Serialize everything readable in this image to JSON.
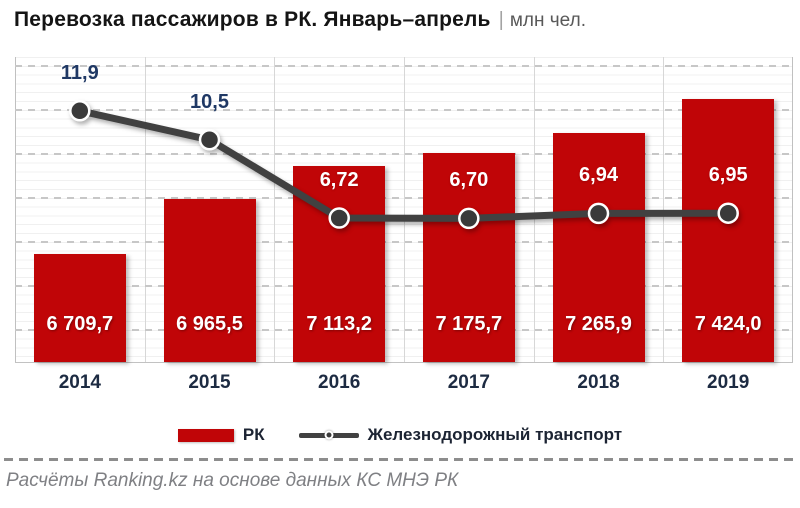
{
  "header": {
    "separator": "|"
  },
  "chart_data": {
    "type": "combo",
    "title": "Перевозка пассажиров в РК. Январь–апрель",
    "unit": "млн чел.",
    "xlabel": "",
    "ylabel": "",
    "categories": [
      "2014",
      "2015",
      "2016",
      "2017",
      "2018",
      "2019"
    ],
    "series": [
      {
        "name": "РК",
        "kind": "bar",
        "color": "#c00507",
        "values": [
          6709.7,
          6965.5,
          7113.2,
          7175.7,
          7265.9,
          7424.0
        ],
        "labels": [
          "6 709,7",
          "6 965,5",
          "7 113,2",
          "7 175,7",
          "7 265,9",
          "7 424,0"
        ],
        "label_color": "#ffffff"
      },
      {
        "name": "Железнодорожный транспорт",
        "kind": "line",
        "color": "#414141",
        "marker_fill": "#3a3a3a",
        "marker_ring": "#ffffff",
        "values": [
          11.9,
          10.5,
          6.72,
          6.7,
          6.94,
          6.95
        ],
        "labels": [
          "11,9",
          "10,5",
          "6,72",
          "6,70",
          "6,94",
          "6,95"
        ],
        "label_color_outside": "#1F3864",
        "label_color_inside": "#ffffff"
      }
    ],
    "axes": {
      "bar_ylim": [
        6212,
        7622
      ],
      "line_ylim": [
        0,
        14.5
      ],
      "grid": "fine horizontal rules with dashed major gridlines, vertical category separators",
      "legend_position": "bottom"
    }
  },
  "footer": {
    "source_note": "Расчёты Ranking.kz на основе данных КС МНЭ РК"
  }
}
